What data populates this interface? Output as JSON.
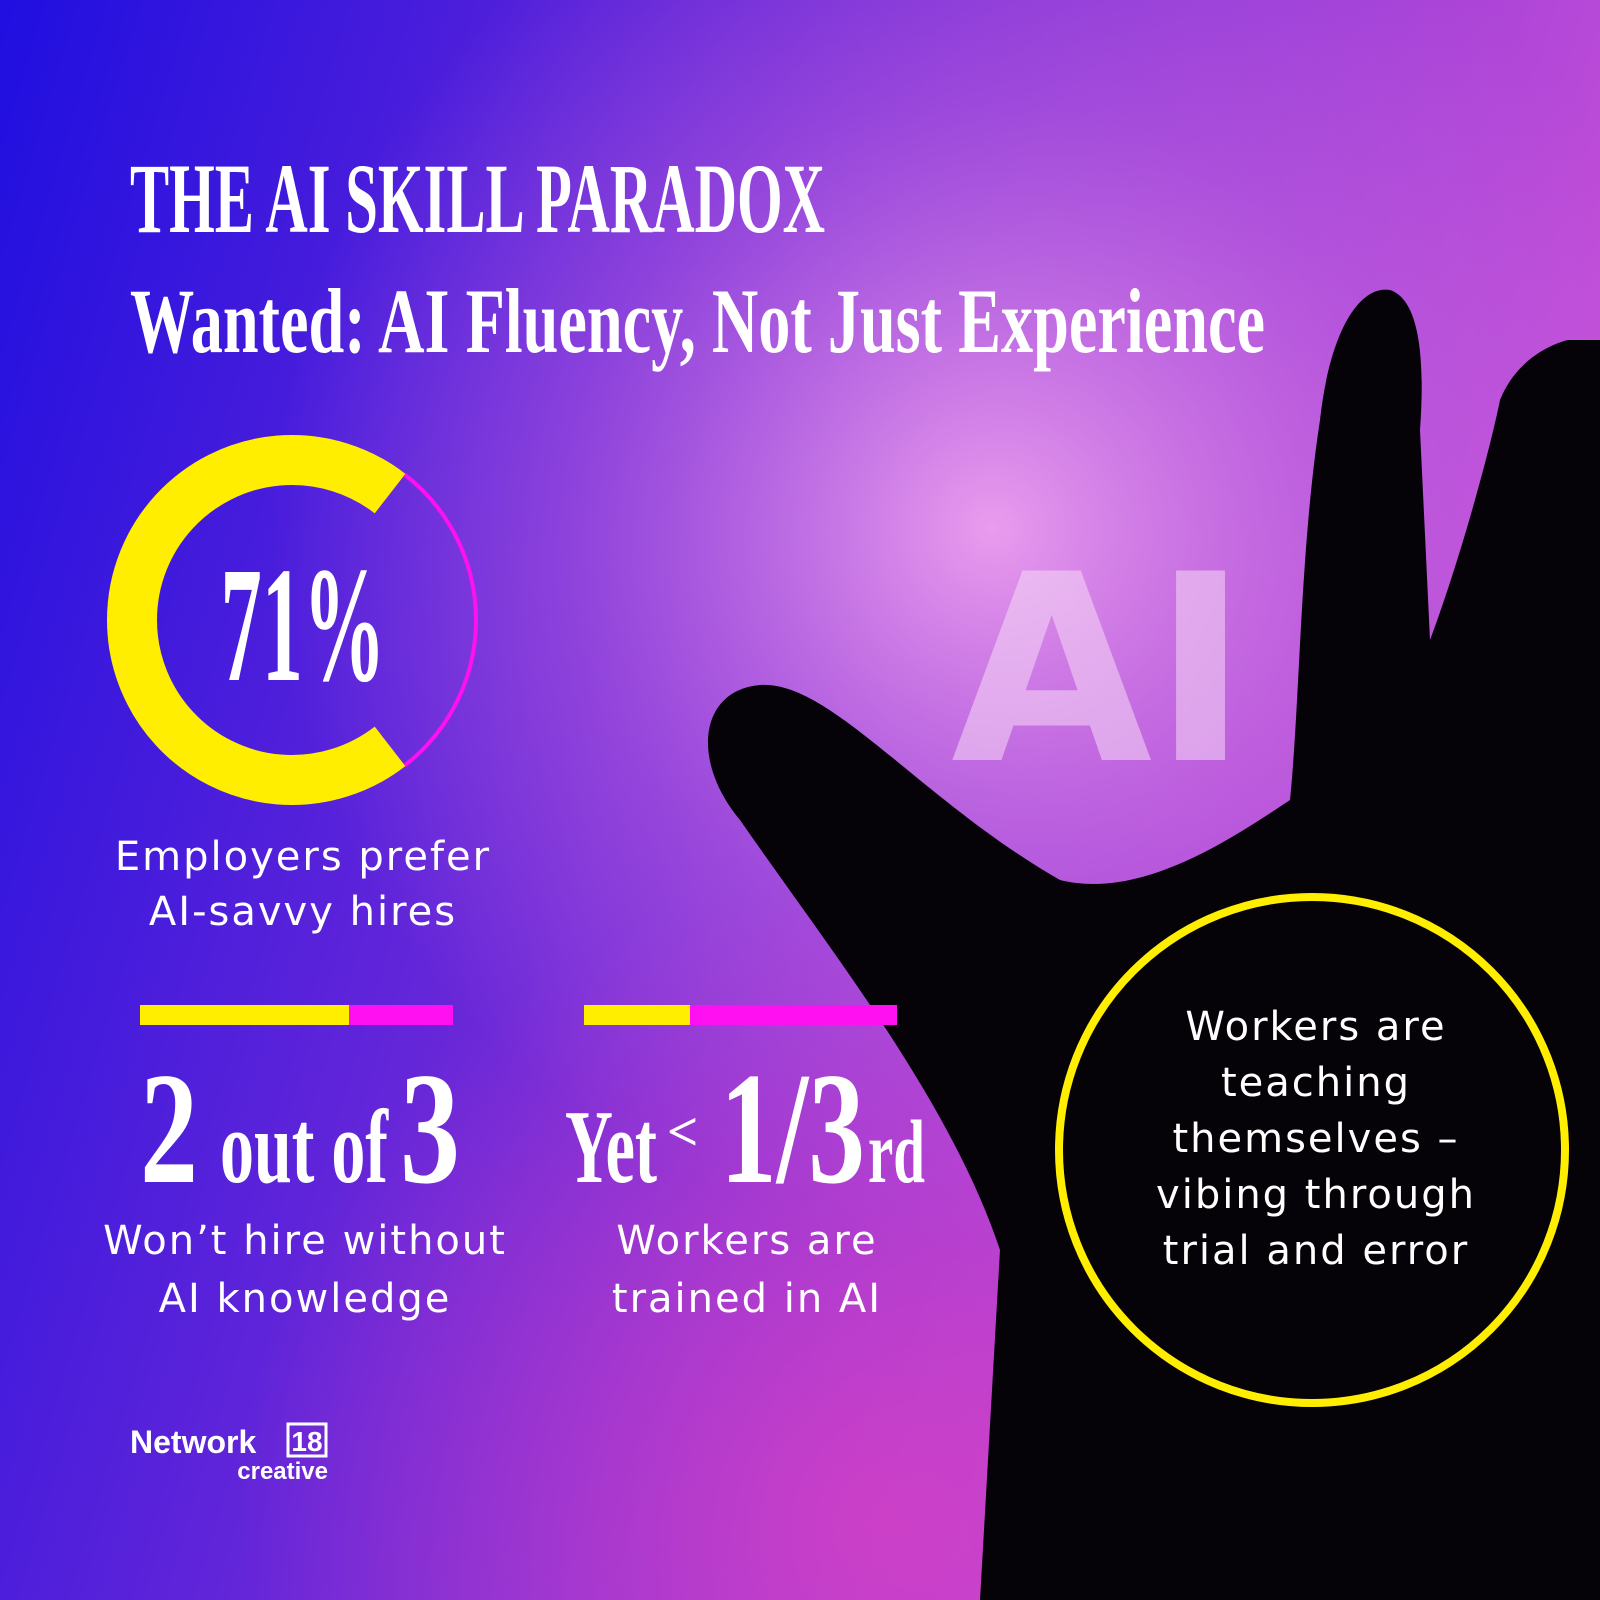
{
  "header": {
    "title": "THE AI SKILL PARADOX",
    "subtitle": "Wanted: AI Fluency, Not Just Experience"
  },
  "background_text": "AI",
  "stat_ring": {
    "value": 71,
    "value_label": "71%",
    "caption": [
      "Employers prefer",
      "AI-savvy hires"
    ]
  },
  "stat_hire": {
    "parts": [
      "2",
      "out of",
      "3"
    ],
    "caption": [
      "Won’t hire without",
      "AI knowledge"
    ]
  },
  "stat_trained": {
    "parts": [
      "Yet",
      "<",
      "1/3",
      "rd"
    ],
    "caption": [
      "Workers are",
      "trained in AI"
    ]
  },
  "callout": {
    "lines": [
      "Workers are",
      "teaching",
      "themselves –",
      "vibing through",
      "trial and error"
    ]
  },
  "logo": {
    "name": "Network",
    "number": "18",
    "sub": "creative"
  }
}
